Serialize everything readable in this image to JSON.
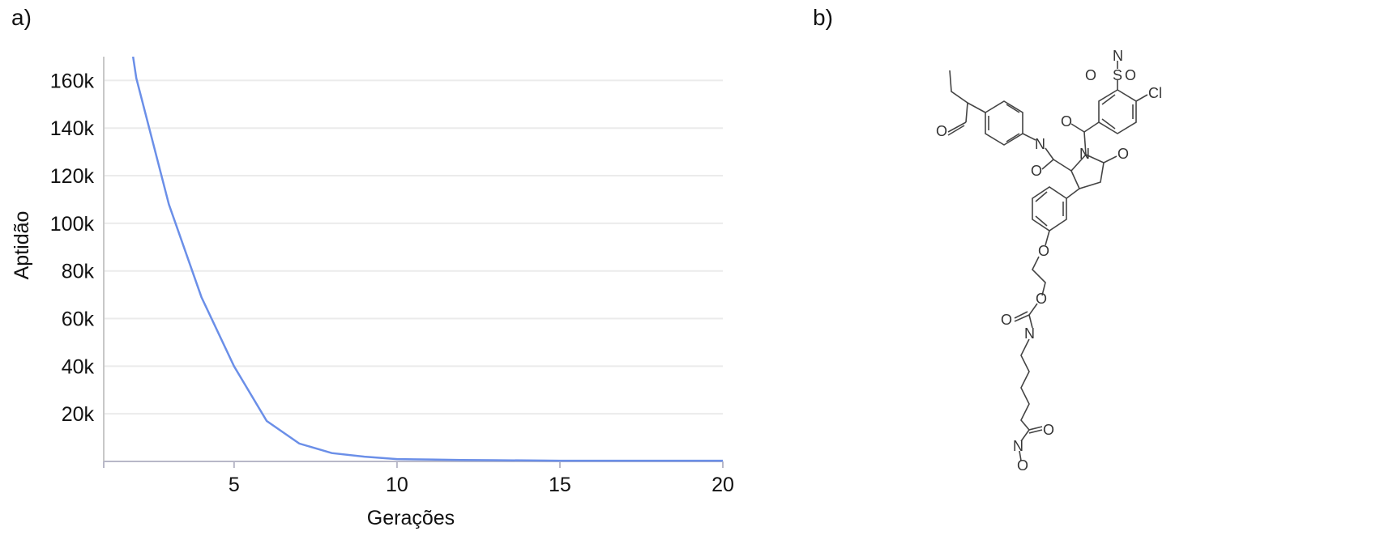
{
  "panels": {
    "a": "a)",
    "b": "b)"
  },
  "chart_data": {
    "type": "line",
    "title": "",
    "xlabel": "Gerações",
    "ylabel": "Aptidão",
    "xlim": [
      1,
      20
    ],
    "ylim": [
      0,
      170000
    ],
    "x_ticks": [
      5,
      10,
      15,
      20
    ],
    "x_tick_labels": [
      "5",
      "10",
      "15",
      "20"
    ],
    "y_ticks": [
      20000,
      40000,
      60000,
      80000,
      100000,
      120000,
      140000,
      160000
    ],
    "y_tick_labels": [
      "20k",
      "40k",
      "60k",
      "80k",
      "100k",
      "120k",
      "140k",
      "160k"
    ],
    "grid": "horizontal",
    "color": "#6b8fe8",
    "series": [
      {
        "x": [
          1.9,
          2,
          3,
          4,
          5,
          6,
          7,
          8,
          9,
          10,
          11,
          12,
          13,
          14,
          15,
          16,
          17,
          18,
          19,
          20
        ],
        "y": [
          170000,
          161000,
          108000,
          69000,
          40000,
          17000,
          7500,
          3500,
          2000,
          1000,
          800,
          600,
          500,
          400,
          300,
          300,
          300,
          300,
          300,
          300
        ]
      }
    ]
  },
  "molecule": {
    "atoms": [
      "N",
      "O",
      "S",
      "O",
      "Cl",
      "O",
      "N",
      "O",
      "N",
      "O",
      "O",
      "O",
      "O",
      "O",
      "N",
      "O",
      "N",
      "O"
    ]
  }
}
